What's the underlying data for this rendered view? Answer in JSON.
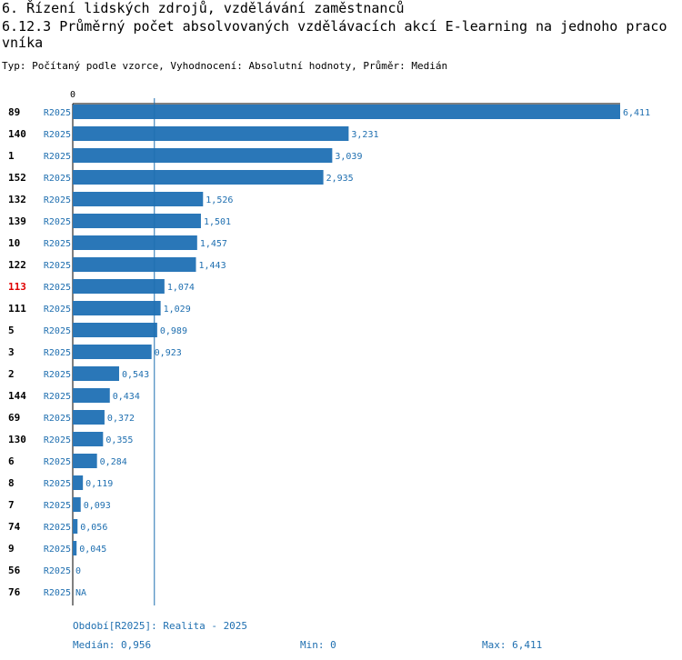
{
  "heading": "6. Řízení lidských zdrojů, vzdělávání zaměstnanců",
  "subheading": "6.12.3 Průměrný počet absolvovaných vzdělávacích akcí E-learning na jednoho pracovníka",
  "meta": "Typ: Počítaný podle vzorce, Vyhodnocení: Absolutní hodnoty, Průměr: Medián",
  "colors": {
    "bar": "#2a77b8",
    "label_text": "#1f6fb0",
    "highlight": "#e00000",
    "axis": "#000000"
  },
  "chart_data": {
    "type": "bar",
    "orientation": "horizontal",
    "axis_start_label": "0",
    "xlim": [
      0,
      6.411
    ],
    "period_code": "R2025",
    "highlight_category": "113",
    "median": 0.956,
    "rows": [
      {
        "id": "89",
        "period": "R2025",
        "value": 6.411,
        "label": "6,411"
      },
      {
        "id": "140",
        "period": "R2025",
        "value": 3.231,
        "label": "3,231"
      },
      {
        "id": "1",
        "period": "R2025",
        "value": 3.039,
        "label": "3,039"
      },
      {
        "id": "152",
        "period": "R2025",
        "value": 2.935,
        "label": "2,935"
      },
      {
        "id": "132",
        "period": "R2025",
        "value": 1.526,
        "label": "1,526"
      },
      {
        "id": "139",
        "period": "R2025",
        "value": 1.501,
        "label": "1,501"
      },
      {
        "id": "10",
        "period": "R2025",
        "value": 1.457,
        "label": "1,457"
      },
      {
        "id": "122",
        "period": "R2025",
        "value": 1.443,
        "label": "1,443"
      },
      {
        "id": "113",
        "period": "R2025",
        "value": 1.074,
        "label": "1,074"
      },
      {
        "id": "111",
        "period": "R2025",
        "value": 1.029,
        "label": "1,029"
      },
      {
        "id": "5",
        "period": "R2025",
        "value": 0.989,
        "label": "0,989"
      },
      {
        "id": "3",
        "period": "R2025",
        "value": 0.923,
        "label": "0,923"
      },
      {
        "id": "2",
        "period": "R2025",
        "value": 0.543,
        "label": "0,543"
      },
      {
        "id": "144",
        "period": "R2025",
        "value": 0.434,
        "label": "0,434"
      },
      {
        "id": "69",
        "period": "R2025",
        "value": 0.372,
        "label": "0,372"
      },
      {
        "id": "130",
        "period": "R2025",
        "value": 0.355,
        "label": "0,355"
      },
      {
        "id": "6",
        "period": "R2025",
        "value": 0.284,
        "label": "0,284"
      },
      {
        "id": "8",
        "period": "R2025",
        "value": 0.119,
        "label": "0,119"
      },
      {
        "id": "7",
        "period": "R2025",
        "value": 0.093,
        "label": "0,093"
      },
      {
        "id": "74",
        "period": "R2025",
        "value": 0.056,
        "label": "0,056"
      },
      {
        "id": "9",
        "period": "R2025",
        "value": 0.045,
        "label": "0,045"
      },
      {
        "id": "56",
        "period": "R2025",
        "value": 0,
        "label": "0"
      },
      {
        "id": "76",
        "period": "R2025",
        "value": null,
        "label": "NA"
      }
    ]
  },
  "footer": {
    "period_note": "Období[R2025]: Realita - 2025",
    "median_label": "Medián: 0,956",
    "min_label": "Min: 0",
    "max_label": "Max: 6,411"
  }
}
